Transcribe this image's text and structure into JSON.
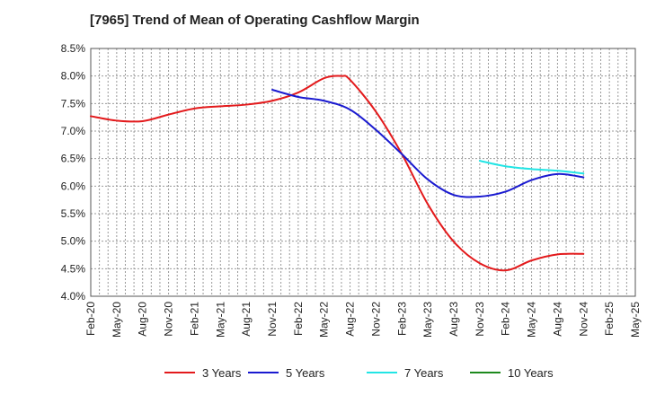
{
  "chart_data": {
    "type": "line",
    "title": "[7965]  Trend of Mean of Operating Cashflow Margin",
    "xlabel": "",
    "ylabel": "",
    "x_ticks": [
      "Feb-20",
      "May-20",
      "Aug-20",
      "Nov-20",
      "Feb-21",
      "May-21",
      "Aug-21",
      "Nov-21",
      "Feb-22",
      "May-22",
      "Aug-22",
      "Nov-22",
      "Feb-23",
      "May-23",
      "Aug-23",
      "Nov-23",
      "Feb-24",
      "May-24",
      "Aug-24",
      "Nov-24",
      "Feb-25",
      "May-25"
    ],
    "y_ticks": [
      "8.5%",
      "8.0%",
      "7.5%",
      "7.0%",
      "6.5%",
      "6.0%",
      "5.5%",
      "5.0%",
      "4.5%",
      "4.0%"
    ],
    "ylim": [
      4.0,
      8.5
    ],
    "grid": true,
    "legend_position": "bottom",
    "series": [
      {
        "name": "3 Years",
        "color": "#e31a1c",
        "points": [
          [
            "Feb-20",
            7.27
          ],
          [
            "May-20",
            7.19
          ],
          [
            "Aug-20",
            7.18
          ],
          [
            "Nov-20",
            7.3
          ],
          [
            "Feb-21",
            7.41
          ],
          [
            "May-21",
            7.45
          ],
          [
            "Aug-21",
            7.48
          ],
          [
            "Nov-21",
            7.55
          ],
          [
            "Feb-22",
            7.7
          ],
          [
            "May-22",
            7.96
          ],
          [
            "Jul-22",
            8.0
          ],
          [
            "Aug-22",
            7.93
          ],
          [
            "Nov-22",
            7.35
          ],
          [
            "Feb-23",
            6.58
          ],
          [
            "May-23",
            5.67
          ],
          [
            "Aug-23",
            4.99
          ],
          [
            "Nov-23",
            4.6
          ],
          [
            "Feb-24",
            4.47
          ],
          [
            "May-24",
            4.65
          ],
          [
            "Aug-24",
            4.76
          ],
          [
            "Nov-24",
            4.77
          ]
        ]
      },
      {
        "name": "5 Years",
        "color": "#1a1ad0",
        "points": [
          [
            "Nov-21",
            7.75
          ],
          [
            "Feb-22",
            7.62
          ],
          [
            "May-22",
            7.55
          ],
          [
            "Aug-22",
            7.39
          ],
          [
            "Nov-22",
            7.02
          ],
          [
            "Feb-23",
            6.58
          ],
          [
            "May-23",
            6.12
          ],
          [
            "Aug-23",
            5.84
          ],
          [
            "Nov-23",
            5.81
          ],
          [
            "Feb-24",
            5.9
          ],
          [
            "May-24",
            6.11
          ],
          [
            "Aug-24",
            6.22
          ],
          [
            "Nov-24",
            6.16
          ]
        ]
      },
      {
        "name": "7 Years",
        "color": "#22e5e5",
        "points": [
          [
            "Nov-23",
            6.46
          ],
          [
            "Feb-24",
            6.36
          ],
          [
            "May-24",
            6.31
          ],
          [
            "Aug-24",
            6.28
          ],
          [
            "Nov-24",
            6.23
          ]
        ]
      },
      {
        "name": "10 Years",
        "color": "#1e8a1e",
        "points": []
      }
    ]
  },
  "colors": {
    "grid": "#999999",
    "axis": "#555555",
    "background": "#ffffff"
  }
}
